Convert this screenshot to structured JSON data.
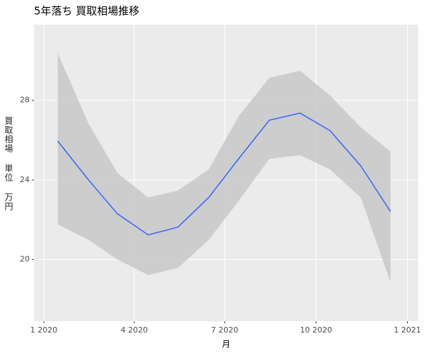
{
  "chart_data": {
    "type": "line",
    "title": "5年落ち 買取相場推移",
    "xlabel": "月",
    "ylabel": "買取相場 単位 万円",
    "x": [
      "2020-01",
      "2020-02",
      "2020-03",
      "2020-04",
      "2020-05",
      "2020-06",
      "2020-07",
      "2020-08",
      "2020-09",
      "2020-10",
      "2020-11",
      "2020-12"
    ],
    "values": [
      25.95,
      24.0,
      22.3,
      21.24,
      21.63,
      23.12,
      25.06,
      27.0,
      27.36,
      26.48,
      24.71,
      22.41
    ],
    "lower": [
      21.77,
      20.99,
      20.0,
      19.22,
      19.58,
      20.99,
      22.94,
      25.06,
      25.24,
      24.53,
      23.12,
      18.87
    ],
    "upper": [
      30.37,
      26.83,
      24.35,
      23.12,
      23.47,
      24.53,
      27.19,
      29.13,
      29.49,
      28.25,
      26.65,
      25.42
    ],
    "color": "#3366ff",
    "band_color": "#c8c8c8",
    "xlim": [
      "2019-12-22",
      "2021-01-12"
    ],
    "xticks": [
      {
        "value": "2020-01",
        "label": "1 2020"
      },
      {
        "value": "2020-04",
        "label": "4 2020"
      },
      {
        "value": "2020-07",
        "label": "7 2020"
      },
      {
        "value": "2020-10",
        "label": "10 2020"
      },
      {
        "value": "2021-01",
        "label": "1 2021"
      }
    ],
    "ylim": [
      16.9,
      31.8
    ],
    "yticks": [
      20,
      24,
      28
    ],
    "grid": true
  }
}
